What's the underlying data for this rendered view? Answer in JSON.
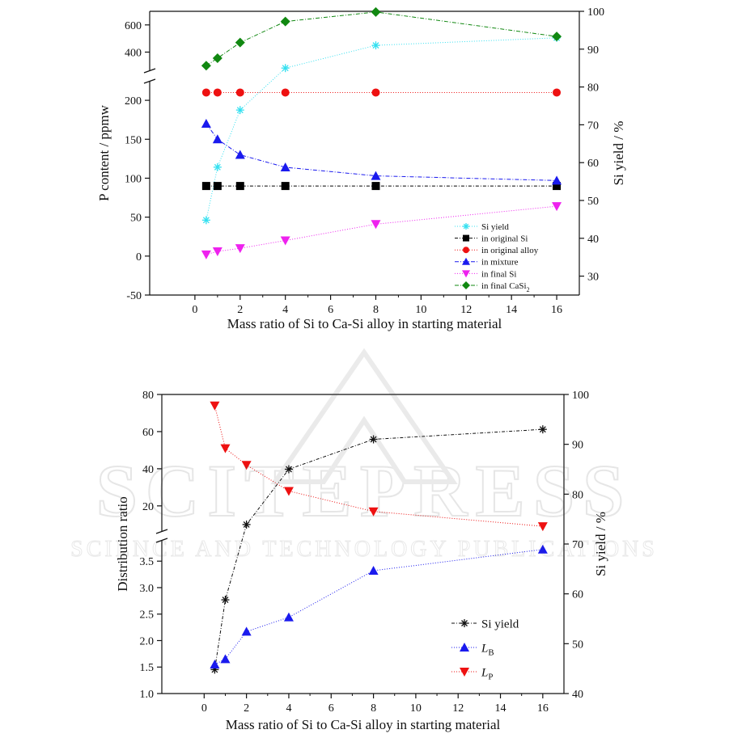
{
  "watermark": {
    "main": "SCITEPRESS",
    "sub": "SCIENCE AND TECHNOLOGY PUBLICATIONS"
  },
  "chart_data": [
    {
      "type": "line",
      "xlabel": "Mass ratio of Si to Ca-Si alloy in starting material",
      "ylabel": "P content / ppmw",
      "y2label": "Si yield / %",
      "xlim": [
        -2,
        17
      ],
      "x_ticks": [
        0,
        2,
        4,
        6,
        8,
        10,
        12,
        14,
        16
      ],
      "y_lower_range": [
        -50,
        225
      ],
      "y_lower_ticks": [
        -50,
        0,
        50,
        100,
        150,
        200
      ],
      "y_upper_range": [
        260,
        700
      ],
      "y_upper_ticks": [
        400,
        600
      ],
      "y_break": true,
      "y2lim": [
        25,
        100
      ],
      "y2_ticks": [
        30,
        40,
        50,
        60,
        70,
        80,
        90,
        100
      ],
      "legend_position": "bottom-right",
      "legend": [
        {
          "label": "Si yield",
          "sub": ""
        },
        {
          "label": "in original Si",
          "sub": ""
        },
        {
          "label": "in original alloy",
          "sub": ""
        },
        {
          "label": "in mixture",
          "sub": ""
        },
        {
          "label": "in final Si",
          "sub": ""
        },
        {
          "label": "in final CaSi",
          "sub": "2"
        }
      ],
      "series": [
        {
          "name": "Si yield",
          "axis": "right",
          "marker": "asterisk",
          "color": "#33e0f0",
          "dash": "1 2",
          "x": [
            0.5,
            1,
            2,
            4,
            8,
            16
          ],
          "values": [
            44.8,
            58.8,
            73.9,
            85.0,
            91.0,
            93.0
          ]
        },
        {
          "name": "in original Si",
          "axis": "left",
          "marker": "square",
          "color": "#000000",
          "dash": "4 2 1 2",
          "x": [
            0.5,
            1,
            2,
            4,
            8,
            16
          ],
          "values": [
            90,
            90,
            90,
            90,
            90,
            90
          ]
        },
        {
          "name": "in original alloy",
          "axis": "left",
          "marker": "circle",
          "color": "#ee1111",
          "dash": "1 2",
          "x": [
            0.5,
            1,
            2,
            4,
            8,
            16
          ],
          "values": [
            210,
            210,
            210,
            210,
            210,
            210
          ]
        },
        {
          "name": "in mixture",
          "axis": "left",
          "marker": "triangle-up",
          "color": "#1a1aee",
          "dash": "5 2 1 2",
          "x": [
            0.5,
            1,
            2,
            4,
            8,
            16
          ],
          "values": [
            170,
            150,
            130,
            114,
            103,
            97
          ]
        },
        {
          "name": "in final Si",
          "axis": "left",
          "marker": "triangle-down",
          "color": "#ee22ee",
          "dash": "1 2",
          "x": [
            0.5,
            1,
            2,
            4,
            8,
            16
          ],
          "values": [
            2,
            6,
            10,
            20,
            41,
            64
          ]
        },
        {
          "name": "in final CaSi2",
          "axis": "left",
          "marker": "diamond",
          "color": "#118811",
          "dash": "5 2 1 2",
          "x": [
            0.5,
            1,
            2,
            4,
            8,
            16
          ],
          "values": [
            300,
            355,
            470,
            625,
            695,
            515
          ]
        }
      ]
    },
    {
      "type": "line",
      "xlabel": "Mass ratio of Si to Ca-Si alloy in starting material",
      "ylabel": "Distribution ratio",
      "y2label": "Si yield / %",
      "xlim": [
        -2,
        17
      ],
      "x_ticks": [
        0,
        2,
        4,
        6,
        8,
        10,
        12,
        14,
        16
      ],
      "y_lower_range": [
        1.0,
        3.9
      ],
      "y_lower_ticks": [
        1.0,
        1.5,
        2.0,
        2.5,
        3.0,
        3.5
      ],
      "y_upper_range": [
        6,
        80
      ],
      "y_upper_ticks": [
        20,
        40,
        60,
        80
      ],
      "y_break": true,
      "y2lim": [
        40,
        100
      ],
      "y2_ticks": [
        40,
        50,
        60,
        70,
        80,
        90,
        100
      ],
      "legend_position": "bottom-right",
      "legend": [
        {
          "label": "Si yield",
          "sub": ""
        },
        {
          "label": "L",
          "sub": "B"
        },
        {
          "label": "L",
          "sub": "P"
        }
      ],
      "series": [
        {
          "name": "Si yield",
          "axis": "right",
          "marker": "asterisk",
          "color": "#111111",
          "dash": "4 2 1 2",
          "x": [
            0.5,
            1,
            2,
            4,
            8,
            16
          ],
          "values": [
            44.8,
            58.8,
            73.9,
            85.0,
            91.0,
            93.0
          ]
        },
        {
          "name": "LB",
          "axis": "left",
          "marker": "triangle-up",
          "color": "#1a1aee",
          "dash": "1 2",
          "x": [
            0.5,
            1,
            2,
            4,
            8,
            16
          ],
          "values": [
            1.55,
            1.65,
            2.17,
            2.44,
            3.32,
            3.72
          ]
        },
        {
          "name": "LP",
          "axis": "left",
          "marker": "triangle-down",
          "color": "#ee1111",
          "dash": "1 2",
          "x": [
            0.5,
            1,
            2,
            4,
            8,
            16
          ],
          "values": [
            74,
            51,
            42,
            28,
            17,
            9
          ]
        }
      ]
    }
  ]
}
